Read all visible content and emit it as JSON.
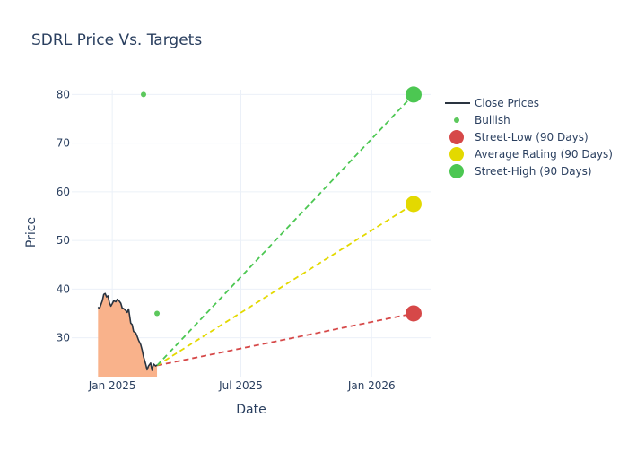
{
  "chart_data": {
    "type": "line",
    "title": "SDRL Price Vs. Targets",
    "xlabel": "Date",
    "ylabel": "Price",
    "x_range": [
      "2024-11-05",
      "2026-03-25"
    ],
    "ylim": [
      22,
      81
    ],
    "x_ticks": [
      {
        "date": "2025-01-01",
        "label": "Jan 2025"
      },
      {
        "date": "2025-07-01",
        "label": "Jul 2025"
      },
      {
        "date": "2026-01-01",
        "label": "Jan 2026"
      }
    ],
    "y_ticks": [
      30,
      40,
      50,
      60,
      70,
      80
    ],
    "grid": true,
    "legend_position": "top-right",
    "series": [
      {
        "name": "Close Prices",
        "kind": "line-area",
        "color": "#2a3440",
        "fill": "#f9b28b",
        "points": [
          [
            "2024-12-12",
            36.3
          ],
          [
            "2024-12-14",
            36.0
          ],
          [
            "2024-12-16",
            36.8
          ],
          [
            "2024-12-18",
            37.6
          ],
          [
            "2024-12-20",
            38.9
          ],
          [
            "2024-12-22",
            39.1
          ],
          [
            "2024-12-24",
            38.4
          ],
          [
            "2024-12-26",
            38.6
          ],
          [
            "2024-12-28",
            37.2
          ],
          [
            "2024-12-30",
            36.5
          ],
          [
            "2025-01-01",
            37.0
          ],
          [
            "2025-01-03",
            37.6
          ],
          [
            "2025-01-06",
            37.4
          ],
          [
            "2025-01-08",
            37.9
          ],
          [
            "2025-01-10",
            37.7
          ],
          [
            "2025-01-13",
            37.1
          ],
          [
            "2025-01-15",
            36.1
          ],
          [
            "2025-01-17",
            36.0
          ],
          [
            "2025-01-20",
            35.6
          ],
          [
            "2025-01-22",
            35.2
          ],
          [
            "2025-01-24",
            35.9
          ],
          [
            "2025-01-27",
            33.0
          ],
          [
            "2025-01-29",
            32.7
          ],
          [
            "2025-01-31",
            31.3
          ],
          [
            "2025-02-03",
            31.0
          ],
          [
            "2025-02-05",
            30.3
          ],
          [
            "2025-02-07",
            29.5
          ],
          [
            "2025-02-10",
            28.6
          ],
          [
            "2025-02-12",
            27.5
          ],
          [
            "2025-02-14",
            26.1
          ],
          [
            "2025-02-17",
            24.6
          ],
          [
            "2025-02-19",
            23.4
          ],
          [
            "2025-02-21",
            24.2
          ],
          [
            "2025-02-24",
            24.8
          ],
          [
            "2025-02-26",
            23.3
          ],
          [
            "2025-02-28",
            24.6
          ],
          [
            "2025-03-03",
            24.2
          ],
          [
            "2025-03-05",
            24.4
          ]
        ]
      },
      {
        "name": "Bullish",
        "kind": "markers",
        "color": "#5cc85c",
        "points": [
          [
            "2025-02-14",
            80
          ],
          [
            "2025-03-05",
            35
          ]
        ]
      },
      {
        "name": "Street-Low (90 Days)",
        "kind": "target",
        "color": "#d64848",
        "from": [
          "2025-03-05",
          24.3
        ],
        "to": [
          "2026-03-01",
          35
        ]
      },
      {
        "name": "Average Rating (90 Days)",
        "kind": "target",
        "color": "#e3d900",
        "from": [
          "2025-03-05",
          24.3
        ],
        "to": [
          "2026-03-01",
          57.5
        ]
      },
      {
        "name": "Street-High (90 Days)",
        "kind": "target",
        "color": "#4cc752",
        "from": [
          "2025-03-05",
          24.3
        ],
        "to": [
          "2026-03-01",
          80
        ]
      }
    ]
  }
}
